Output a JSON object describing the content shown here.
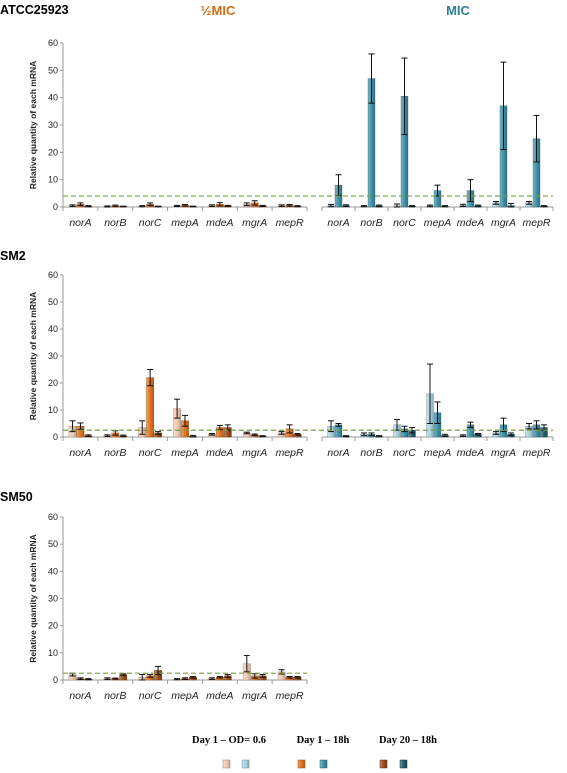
{
  "chart_data": [
    {
      "type": "bar",
      "title": "ATCC25923",
      "ylabel": "Relative quantity of each mRNA",
      "ylim": [
        0,
        60
      ],
      "yticks": [
        0,
        10,
        20,
        30,
        40,
        50,
        60
      ],
      "threshold": 4,
      "categories": [
        "norA",
        "norB",
        "norC",
        "mepA",
        "mdeA",
        "mgrA",
        "mepR"
      ],
      "groups": [
        {
          "name": "½MIC",
          "series": [
            {
              "name": "Day 1 – OD= 0.6",
              "values": [
                0.5,
                0.2,
                0.3,
                0.4,
                0.5,
                1.0,
                0.5
              ],
              "errors": [
                0.3,
                0.2,
                0.2,
                0.2,
                0.3,
                0.5,
                0.3
              ]
            },
            {
              "name": "Day 1 – 18h",
              "values": [
                1.0,
                0.4,
                1.0,
                0.6,
                1.0,
                1.5,
                0.6
              ],
              "errors": [
                0.5,
                0.3,
                0.5,
                0.3,
                0.6,
                0.8,
                0.3
              ]
            },
            {
              "name": "Day 20 – 18h",
              "values": [
                0.3,
                0.2,
                0.2,
                0.2,
                0.4,
                0.4,
                0.3
              ],
              "errors": [
                0.2,
                0.1,
                0.1,
                0.1,
                0.2,
                0.2,
                0.2
              ]
            }
          ]
        },
        {
          "name": "MIC",
          "series": [
            {
              "name": "Day 1 – OD= 0.6",
              "values": [
                0.5,
                0.3,
                0.5,
                0.4,
                0.6,
                1.5,
                1.5
              ],
              "errors": [
                0.4,
                0.2,
                0.6,
                0.3,
                0.4,
                0.5,
                0.5
              ]
            },
            {
              "name": "Day 1 – 18h",
              "values": [
                8,
                47,
                40.5,
                6,
                6,
                37,
                25
              ],
              "errors": [
                3.8,
                9,
                14,
                2,
                4,
                16,
                8.5
              ]
            },
            {
              "name": "Day 20 – 18h",
              "values": [
                0.5,
                0.4,
                0.3,
                0.3,
                0.4,
                0.5,
                0.3
              ],
              "errors": [
                0.3,
                0.3,
                0.2,
                0.2,
                0.3,
                0.8,
                0.2
              ]
            }
          ]
        }
      ]
    },
    {
      "type": "bar",
      "title": "SM2",
      "ylabel": "Relative quantity of each mRNA",
      "ylim": [
        0,
        60
      ],
      "yticks": [
        0,
        10,
        20,
        30,
        40,
        50,
        60
      ],
      "threshold": 2.5,
      "categories": [
        "norA",
        "norB",
        "norC",
        "mepA",
        "mdeA",
        "mgrA",
        "mepR"
      ],
      "groups": [
        {
          "name": "½MIC",
          "series": [
            {
              "name": "Day 1 – OD= 0.6",
              "values": [
                4,
                0.5,
                3.5,
                10.5,
                1,
                1.5,
                1.5
              ],
              "errors": [
                2,
                0.3,
                2.5,
                3.5,
                0.3,
                0.3,
                0.5
              ]
            },
            {
              "name": "Day 1 – 18h",
              "values": [
                4,
                1.5,
                22,
                6,
                3.5,
                0.8,
                3
              ],
              "errors": [
                1.2,
                0.8,
                3,
                2,
                0.8,
                0.3,
                1.5
              ]
            },
            {
              "name": "Day 20 – 18h",
              "values": [
                0.5,
                0.4,
                1.5,
                0.3,
                3.5,
                0.3,
                1
              ],
              "errors": [
                0.3,
                0.3,
                0.5,
                0.3,
                1,
                0.2,
                0.3
              ]
            }
          ]
        },
        {
          "name": "MIC",
          "series": [
            {
              "name": "Day 1 – OD= 0.6",
              "values": [
                4,
                1,
                4.5,
                16,
                0.5,
                1.5,
                4
              ],
              "errors": [
                2,
                0.5,
                2,
                11,
                0.3,
                0.5,
                1
              ]
            },
            {
              "name": "Day 1 – 18h",
              "values": [
                4.5,
                1,
                3,
                9,
                4.5,
                4.5,
                4.5
              ],
              "errors": [
                0.5,
                0.5,
                1,
                4,
                1,
                2.5,
                1.5
              ]
            },
            {
              "name": "Day 20 – 18h",
              "values": [
                0.3,
                0.3,
                2.5,
                0.6,
                1,
                1,
                3.5
              ],
              "errors": [
                0.2,
                0.2,
                1,
                0.4,
                0.3,
                0.5,
                1
              ]
            }
          ]
        }
      ]
    },
    {
      "type": "bar",
      "title": "SM50",
      "ylabel": "Relative quantity of each mRNA",
      "ylim": [
        0,
        60
      ],
      "yticks": [
        0,
        10,
        20,
        30,
        40,
        50,
        60
      ],
      "threshold": 2.5,
      "categories": [
        "norA",
        "norB",
        "norC",
        "mepA",
        "mdeA",
        "mgrA",
        "mepR"
      ],
      "groups": [
        {
          "name": "½MIC",
          "series": [
            {
              "name": "Day 1 – OD= 0.6",
              "values": [
                2,
                0.5,
                1,
                0.3,
                0.5,
                6,
                3
              ],
              "errors": [
                0.5,
                0.3,
                1,
                0.2,
                0.3,
                3,
                0.8
              ]
            },
            {
              "name": "Day 1 – 18h",
              "values": [
                0.5,
                0.5,
                1.5,
                0.5,
                1,
                1.5,
                1
              ],
              "errors": [
                0.3,
                0.2,
                0.5,
                0.3,
                0.3,
                0.8,
                0.3
              ]
            },
            {
              "name": "Day 20 – 18h",
              "values": [
                0.3,
                2,
                3.5,
                1,
                1.5,
                1.5,
                1
              ],
              "errors": [
                0.2,
                0.3,
                1.5,
                0.3,
                0.5,
                0.5,
                0.3
              ]
            }
          ]
        }
      ]
    }
  ],
  "legend": {
    "labels": [
      "Day 1 – OD= 0.6",
      "Day 1 – 18h",
      "Day 20 – 18h"
    ],
    "half_mic_colors": [
      "#f2c9b3",
      "#e0701c",
      "#9a4a16"
    ],
    "mic_colors": [
      "#a9d3df",
      "#3a8fa5",
      "#1f5a6d"
    ]
  },
  "colors": {
    "half_mic": "#d26c14",
    "mic": "#2f7f93",
    "threshold": "#7aa13a",
    "axis": "#9a9a9a"
  }
}
